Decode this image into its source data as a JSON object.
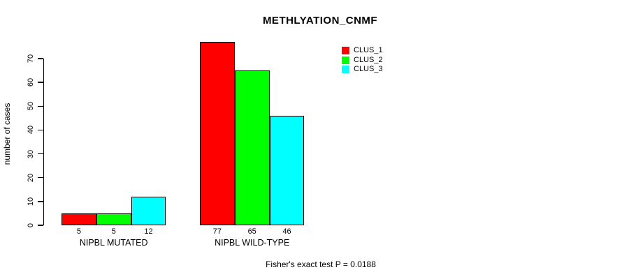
{
  "chart_data": {
    "type": "bar",
    "title": "METHLYATION_CNMF",
    "ylabel": "number of cases",
    "xlabel": "",
    "categories": [
      "NIPBL MUTATED",
      "NIPBL WILD-TYPE"
    ],
    "series": [
      {
        "name": "CLUS_1",
        "color": "#FF0000",
        "values": [
          5,
          77
        ]
      },
      {
        "name": "CLUS_2",
        "color": "#00FF00",
        "values": [
          5,
          65
        ]
      },
      {
        "name": "CLUS_3",
        "color": "#00FFFF",
        "values": [
          12,
          46
        ]
      }
    ],
    "bar_value_labels": [
      [
        "5",
        "5",
        "12"
      ],
      [
        "77",
        "65",
        "46"
      ]
    ],
    "yticks": [
      0,
      10,
      20,
      30,
      40,
      50,
      60,
      70
    ],
    "ylim": [
      0,
      70
    ],
    "grid": false,
    "legend_position": "top-right",
    "legend_entries": [
      "CLUS_1",
      "CLUS_2",
      "CLUS_3"
    ],
    "annotation": "Fisher's exact test P = 0.0188",
    "axis_color": "#000000",
    "bar_border_color": "#000000",
    "background_color": "#FFFFFF"
  }
}
